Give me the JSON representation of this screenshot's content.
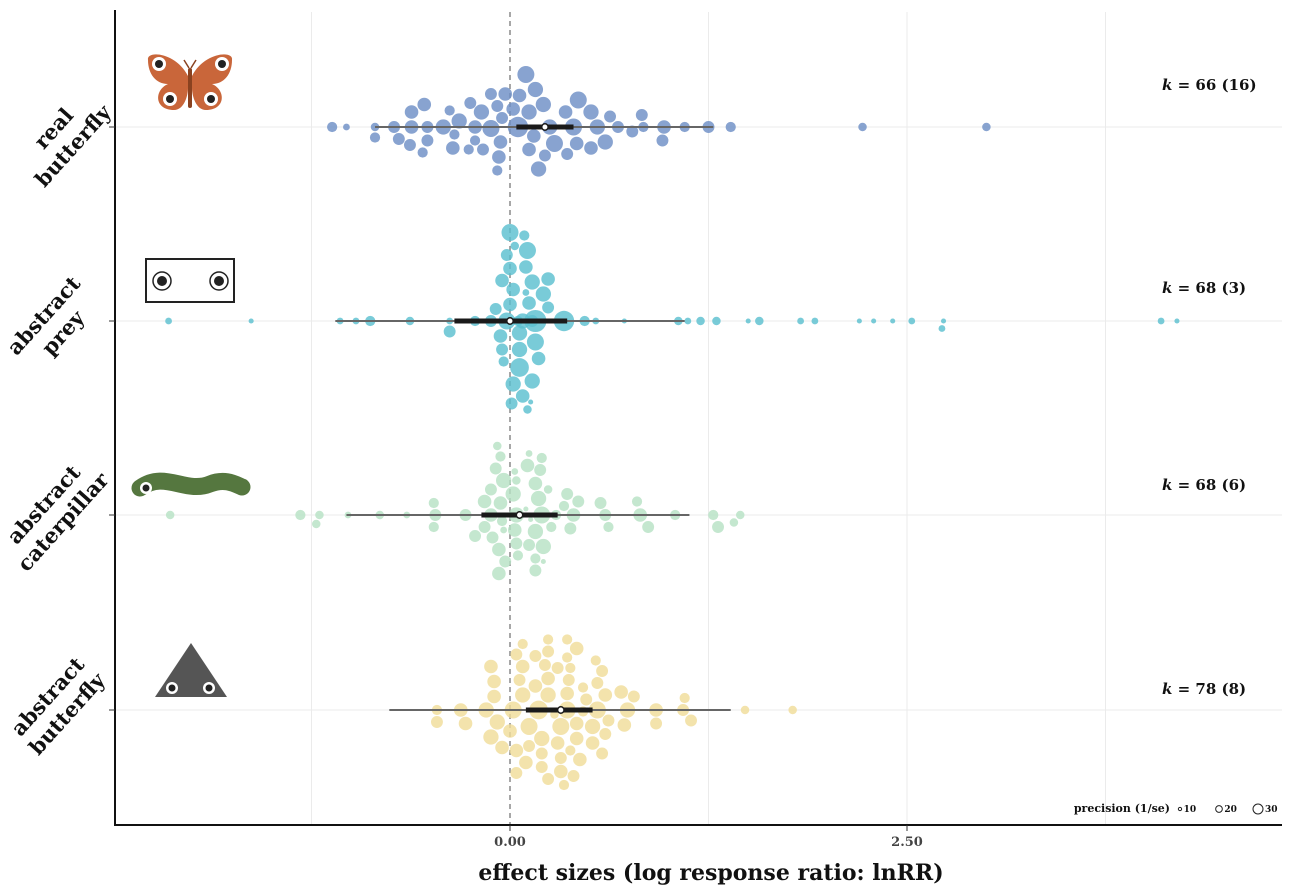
{
  "chart_data": {
    "type": "scatter",
    "subtype": "orchard plot",
    "xlabel": "effect sizes (log response ratio: lnRR)",
    "ylabel": "",
    "xlim": [
      -4.0,
      3.9
    ],
    "x_ticks": [
      0.0,
      2.5
    ],
    "x_tick_labels": [
      "0.00",
      "2.50"
    ],
    "grid": true,
    "legend": {
      "title": "precision (1/se)",
      "placement": "bottom-right",
      "sizes": [
        10,
        20,
        30
      ],
      "labels": [
        "10",
        "20",
        "30"
      ]
    },
    "groups": [
      {
        "name": "real butterfly",
        "label_lines": [
          "real",
          "butterfly"
        ],
        "icon": "real-butterfly-icon",
        "color": "#6e8fc6",
        "k_label": "k = 66 (16)",
        "estimate": 0.22,
        "ci": [
          0.04,
          0.4
        ],
        "pi": [
          -0.85,
          1.28
        ],
        "points": [
          [
            -1.12,
            6
          ],
          [
            -1.03,
            4
          ],
          [
            -0.85,
            5
          ],
          [
            -0.73,
            7
          ],
          [
            -0.62,
            8
          ],
          [
            -0.52,
            7
          ],
          [
            -0.42,
            9
          ],
          [
            -0.35,
            6
          ],
          [
            -0.22,
            8
          ],
          [
            -0.12,
            10
          ],
          [
            -0.05,
            7
          ],
          [
            0.05,
            12
          ],
          [
            0.15,
            8
          ],
          [
            0.25,
            9
          ],
          [
            0.4,
            10
          ],
          [
            0.55,
            9
          ],
          [
            0.68,
            7
          ],
          [
            0.84,
            6
          ],
          [
            0.97,
            8
          ],
          [
            1.1,
            6
          ],
          [
            1.39,
            6
          ],
          [
            2.22,
            5
          ],
          [
            3.0,
            5
          ],
          [
            -0.85,
            6
          ],
          [
            -0.7,
            7
          ],
          [
            -0.62,
            8
          ],
          [
            -0.52,
            7
          ],
          [
            -0.32,
            9
          ],
          [
            -0.22,
            6
          ],
          [
            -0.06,
            8
          ],
          [
            0.12,
            9
          ],
          [
            0.28,
            10
          ],
          [
            0.42,
            8
          ],
          [
            0.6,
            9
          ],
          [
            0.77,
            7
          ],
          [
            0.96,
            7
          ],
          [
            1.25,
            7
          ],
          [
            -0.63,
            7
          ],
          [
            -0.54,
            8
          ],
          [
            -0.38,
            6
          ],
          [
            -0.18,
            9
          ],
          [
            -0.08,
            7
          ],
          [
            0.12,
            8
          ],
          [
            0.21,
            9
          ],
          [
            0.35,
            8
          ],
          [
            0.51,
            9
          ],
          [
            0.63,
            7
          ],
          [
            0.83,
            7
          ],
          [
            -0.55,
            6
          ],
          [
            -0.36,
            8
          ],
          [
            -0.25,
            7
          ],
          [
            -0.07,
            8
          ],
          [
            0.22,
            7
          ],
          [
            0.43,
            10
          ],
          [
            0.51,
            8
          ],
          [
            -0.17,
            7
          ],
          [
            -0.03,
            8
          ],
          [
            0.16,
            9
          ],
          [
            0.36,
            7
          ],
          [
            -0.26,
            6
          ],
          [
            -0.12,
            7
          ],
          [
            0.02,
            8
          ],
          [
            0.18,
            9
          ],
          [
            -0.08,
            6
          ],
          [
            0.06,
            8
          ],
          [
            0.1,
            10
          ]
        ]
      },
      {
        "name": "abstract prey",
        "label_lines": [
          "abstract",
          "prey"
        ],
        "icon": "abstract-prey-icon",
        "color": "#5bc0cf",
        "k_label": "k = 68 (3)",
        "estimate": 0.0,
        "ci": [
          -0.35,
          0.36
        ],
        "pi": [
          -1.1,
          1.1
        ],
        "points": [
          [
            -2.15,
            4
          ],
          [
            -1.63,
            3
          ],
          [
            -1.07,
            4
          ],
          [
            -0.97,
            4
          ],
          [
            -0.88,
            6
          ],
          [
            -0.63,
            5
          ],
          [
            -0.38,
            4
          ],
          [
            -0.22,
            6
          ],
          [
            -0.02,
            10
          ],
          [
            0.16,
            13
          ],
          [
            0.34,
            12
          ],
          [
            0.54,
            4
          ],
          [
            0.72,
            3
          ],
          [
            1.06,
            5
          ],
          [
            1.3,
            5
          ],
          [
            1.5,
            3
          ],
          [
            1.83,
            4
          ],
          [
            2.2,
            3
          ],
          [
            2.29,
            3
          ],
          [
            2.53,
            4
          ],
          [
            2.73,
            3
          ],
          [
            -0.06,
            8
          ],
          [
            0.16,
            10
          ],
          [
            1.57,
            5
          ],
          [
            1.92,
            4
          ],
          [
            2.41,
            3
          ],
          [
            2.72,
            4
          ],
          [
            4.1,
            4
          ],
          [
            4.2,
            3
          ],
          [
            -0.12,
            7
          ],
          [
            0.06,
            9
          ],
          [
            0.24,
            7
          ],
          [
            1.2,
            5
          ],
          [
            -0.38,
            7
          ],
          [
            0.0,
            8
          ],
          [
            0.21,
            9
          ],
          [
            0.47,
            6
          ],
          [
            1.12,
            4
          ],
          [
            0.06,
            9
          ],
          [
            0.18,
            8
          ],
          [
            -0.09,
            7
          ],
          [
            0.12,
            8
          ],
          [
            0.02,
            8
          ],
          [
            0.14,
            9
          ],
          [
            0.06,
            11
          ],
          [
            0.1,
            8
          ],
          [
            -0.05,
            7
          ],
          [
            0.24,
            8
          ],
          [
            0.02,
            9
          ],
          [
            -0.05,
            8
          ],
          [
            0.14,
            9
          ],
          [
            0.11,
            10
          ],
          [
            0.0,
            8
          ],
          [
            0.08,
            8
          ],
          [
            -0.02,
            7
          ],
          [
            0.09,
            6
          ],
          [
            0.03,
            5
          ],
          [
            0.06,
            4
          ],
          [
            0.13,
            3
          ],
          [
            0.01,
            7
          ],
          [
            0.08,
            9
          ],
          [
            0.0,
            10
          ],
          [
            0.05,
            6
          ],
          [
            0.11,
            5
          ],
          [
            -0.04,
            6
          ],
          [
            0.14,
            7
          ],
          [
            0.02,
            4
          ],
          [
            0.1,
            4
          ]
        ]
      },
      {
        "name": "abstract caterpillar",
        "label_lines": [
          "abstract",
          "caterpillar"
        ],
        "icon": "abstract-caterpillar-icon",
        "color": "#b7e2c5",
        "k_label": "k = 68 (6)",
        "estimate": 0.06,
        "ci": [
          -0.18,
          0.3
        ],
        "pi": [
          -1.03,
          1.13
        ],
        "points": [
          [
            -2.14,
            5
          ],
          [
            -1.32,
            6
          ],
          [
            -1.2,
            5
          ],
          [
            -1.02,
            4
          ],
          [
            -0.82,
            5
          ],
          [
            -0.65,
            4
          ],
          [
            -0.47,
            7
          ],
          [
            -0.28,
            7
          ],
          [
            -0.12,
            8
          ],
          [
            0.04,
            9
          ],
          [
            0.2,
            10
          ],
          [
            0.4,
            8
          ],
          [
            0.6,
            7
          ],
          [
            0.82,
            8
          ],
          [
            1.04,
            6
          ],
          [
            1.28,
            6
          ],
          [
            1.31,
            7
          ],
          [
            1.45,
            5
          ],
          [
            -1.22,
            5
          ],
          [
            -0.48,
            6
          ],
          [
            -0.16,
            7
          ],
          [
            0.16,
            9
          ],
          [
            0.38,
            7
          ],
          [
            0.62,
            6
          ],
          [
            0.87,
            7
          ],
          [
            1.41,
            5
          ],
          [
            -0.48,
            6
          ],
          [
            -0.16,
            8
          ],
          [
            0.18,
            9
          ],
          [
            0.43,
            7
          ],
          [
            0.8,
            6
          ],
          [
            -0.11,
            7
          ],
          [
            0.16,
            8
          ],
          [
            0.34,
            6
          ],
          [
            0.57,
            7
          ],
          [
            -0.06,
            8
          ],
          [
            0.21,
            9
          ],
          [
            0.36,
            7
          ],
          [
            -0.22,
            7
          ],
          [
            -0.05,
            6
          ],
          [
            0.03,
            8
          ],
          [
            0.19,
            7
          ],
          [
            -0.12,
            7
          ],
          [
            0.02,
            9
          ],
          [
            0.16,
            6
          ],
          [
            -0.07,
            8
          ],
          [
            0.12,
            7
          ],
          [
            0.29,
            6
          ],
          [
            -0.04,
            9
          ],
          [
            0.16,
            7
          ],
          [
            0.26,
            6
          ],
          [
            -0.09,
            7
          ],
          [
            0.11,
            8
          ],
          [
            -0.03,
            7
          ],
          [
            0.2,
            6
          ],
          [
            -0.07,
            8
          ],
          [
            0.04,
            7
          ],
          [
            0.04,
            5
          ],
          [
            -0.04,
            4
          ],
          [
            0.13,
            3
          ],
          [
            -0.06,
            6
          ],
          [
            0.05,
            6
          ],
          [
            0.24,
            5
          ],
          [
            0.21,
            3
          ],
          [
            0.1,
            3
          ],
          [
            0.03,
            4
          ],
          [
            -0.08,
            5
          ],
          [
            0.12,
            4
          ]
        ]
      },
      {
        "name": "abstract butterfly",
        "label_lines": [
          "abstract",
          "butterfly"
        ],
        "icon": "abstract-butterfly-icon",
        "color": "#f0dd9a",
        "k_label": "k = 78 (8)",
        "estimate": 0.32,
        "ci": [
          0.1,
          0.52
        ],
        "pi": [
          -0.76,
          1.39
        ],
        "points": [
          [
            -0.46,
            6
          ],
          [
            -0.31,
            8
          ],
          [
            -0.15,
            9
          ],
          [
            0.02,
            10
          ],
          [
            0.18,
            11
          ],
          [
            0.36,
            10
          ],
          [
            0.55,
            10
          ],
          [
            0.74,
            9
          ],
          [
            0.92,
            8
          ],
          [
            1.09,
            7
          ],
          [
            1.48,
            5
          ],
          [
            1.78,
            5
          ],
          [
            -0.46,
            7
          ],
          [
            -0.28,
            8
          ],
          [
            -0.08,
            9
          ],
          [
            0.12,
            10
          ],
          [
            0.32,
            10
          ],
          [
            0.52,
            9
          ],
          [
            0.72,
            8
          ],
          [
            0.92,
            7
          ],
          [
            1.14,
            7
          ],
          [
            -0.1,
            8
          ],
          [
            0.08,
            9
          ],
          [
            0.24,
            9
          ],
          [
            0.42,
            8
          ],
          [
            0.6,
            8
          ],
          [
            0.78,
            7
          ],
          [
            1.1,
            6
          ],
          [
            -0.12,
            9
          ],
          [
            0.0,
            8
          ],
          [
            0.2,
            9
          ],
          [
            0.36,
            8
          ],
          [
            0.55,
            7
          ],
          [
            0.7,
            8
          ],
          [
            -0.1,
            8
          ],
          [
            0.06,
            7
          ],
          [
            0.24,
            8
          ],
          [
            0.42,
            8
          ],
          [
            0.6,
            7
          ],
          [
            -0.05,
            8
          ],
          [
            0.12,
            7
          ],
          [
            0.3,
            8
          ],
          [
            0.48,
            7
          ],
          [
            0.62,
            7
          ],
          [
            0.04,
            8
          ],
          [
            0.2,
            7
          ],
          [
            0.37,
            7
          ],
          [
            0.52,
            8
          ],
          [
            0.08,
            8
          ],
          [
            0.22,
            7
          ],
          [
            0.38,
            6
          ],
          [
            0.2,
            7
          ],
          [
            0.38,
            6
          ],
          [
            0.58,
            7
          ],
          [
            0.1,
            8
          ],
          [
            0.32,
            7
          ],
          [
            0.44,
            8
          ],
          [
            0.04,
            7
          ],
          [
            0.24,
            7
          ],
          [
            0.36,
            6
          ],
          [
            -0.12,
            8
          ],
          [
            0.04,
            7
          ],
          [
            0.16,
            8
          ],
          [
            0.3,
            7
          ],
          [
            0.46,
            6
          ],
          [
            0.08,
            6
          ],
          [
            0.24,
            7
          ],
          [
            0.42,
            8
          ],
          [
            0.58,
            7
          ],
          [
            0.16,
            7
          ],
          [
            0.32,
            8
          ],
          [
            0.46,
            6
          ],
          [
            0.24,
            6
          ],
          [
            0.4,
            7
          ],
          [
            0.54,
            6
          ],
          [
            0.36,
            6
          ],
          [
            0.28,
            5
          ],
          [
            0.34,
            6
          ]
        ]
      }
    ]
  }
}
